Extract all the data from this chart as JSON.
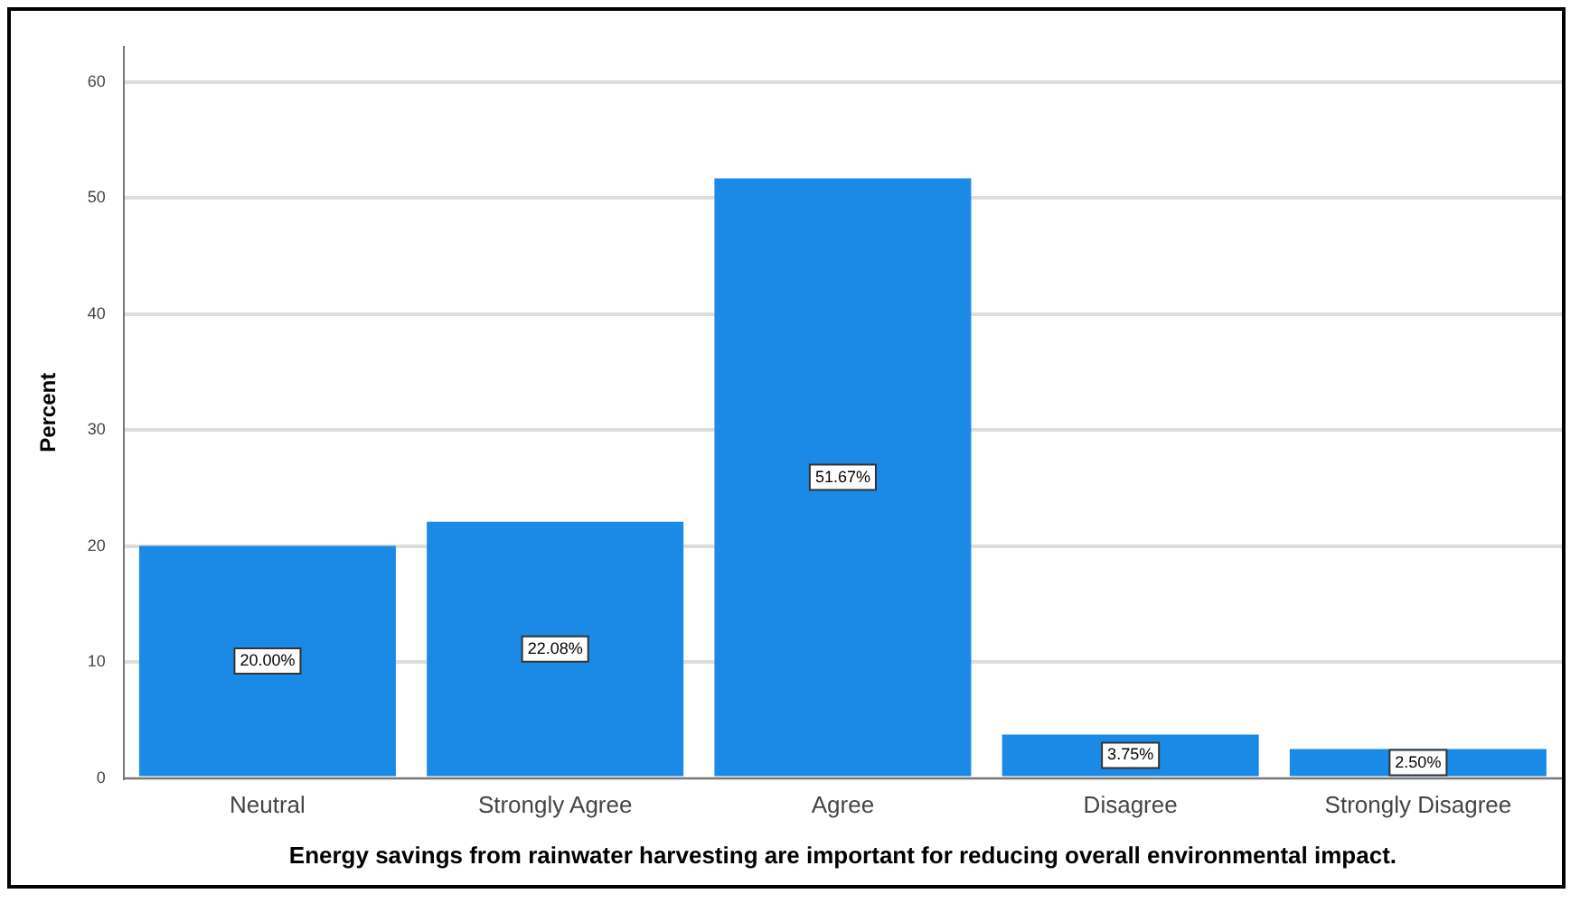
{
  "chart_data": {
    "type": "bar",
    "xlabel": "Energy savings from rainwater harvesting are important for reducing overall environmental impact.",
    "ylabel": "Percent",
    "categories": [
      "Neutral",
      "Strongly Agree",
      "Agree",
      "Disagree",
      "Strongly Disagree"
    ],
    "values": [
      20.0,
      22.08,
      51.67,
      3.75,
      2.5
    ],
    "value_labels": [
      "20.00%",
      "22.08%",
      "51.67%",
      "3.75%",
      "2.50%"
    ],
    "color": "#1a8ae6",
    "ylim": [
      0,
      63
    ],
    "yticks": [
      0,
      10,
      20,
      30,
      40,
      50,
      60
    ],
    "grid": "y",
    "legend": false
  }
}
